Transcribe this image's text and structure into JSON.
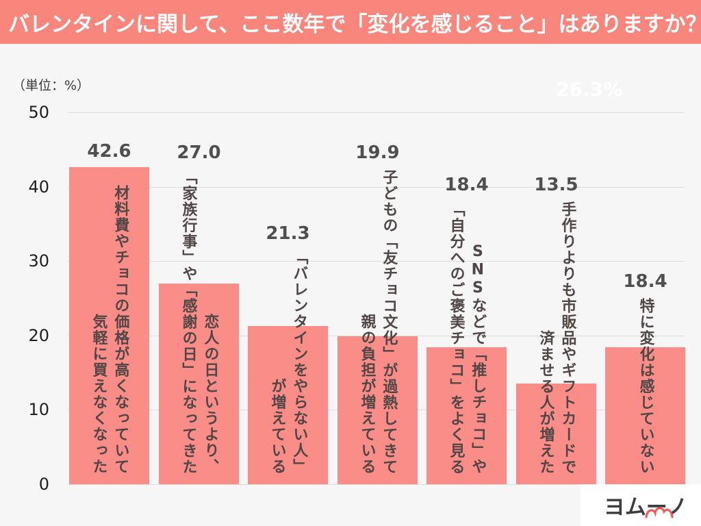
{
  "page": {
    "background": "#f6f6f6"
  },
  "header": {
    "title": "バレンタインに関して、ここ数年で「変化を感じること」はありますか？",
    "background": "#f9867d",
    "text_color": "#ffffff"
  },
  "unit_label": "（単位：%）",
  "watermark_text": "26.3%",
  "logo": {
    "text": "ヨムーノ",
    "text_color": "#3d3d3d",
    "accent_color": "#f0544c"
  },
  "chart_data": {
    "type": "bar",
    "title": "バレンタインに関して、ここ数年で「変化を感じること」はありますか？",
    "unit": "%",
    "ylabel": "（単位：%）",
    "xlabel": "",
    "ylim": [
      0,
      50
    ],
    "yticks": [
      0,
      10,
      20,
      30,
      40,
      50
    ],
    "grid": true,
    "legend": false,
    "bar_color": "#fa8d87",
    "label_color": "#504646",
    "value_color": "#4f4f4f",
    "categories": [
      "材料費やチョコの価格が高くなっていて気軽に買えなくなった",
      "恋人の日というより、「家族行事」や「感謝の日」になってきた",
      "「バレンタインをやらない人」が増えている",
      "子どもの「友チョコ文化」が過熱してきて親の負担が増えている",
      "SNSなどで「推しチョコ」や「自分へのご褒美チョコ」をよく見る",
      "手作りよりも市販品やギフトカードで済ませる人が増えた",
      "特に変化は感じていない"
    ],
    "values": [
      42.6,
      27.0,
      21.3,
      19.9,
      18.4,
      13.5,
      18.4
    ],
    "bars": [
      {
        "value": 42.6,
        "value_label": "42.6",
        "label_lines": [
          "材料費やチョコの価格が高くなっていて",
          "気軽に買えなくなった"
        ]
      },
      {
        "value": 27.0,
        "value_label": "27.0",
        "label_lines": [
          "恋人の日というより、",
          "「家族行事」や「感謝の日」になってきた"
        ]
      },
      {
        "value": 21.3,
        "value_label": "21.3",
        "label_lines": [
          "「バレンタインをやらない人」",
          "が増えている"
        ]
      },
      {
        "value": 19.9,
        "value_label": "19.9",
        "label_lines": [
          "子どもの「友チョコ文化」が過熱してきて",
          "親の負担が増えている"
        ]
      },
      {
        "value": 18.4,
        "value_label": "18.4",
        "label_lines": [
          "SNSなどで「推しチョコ」や",
          "「自分へのご褒美チョコ」をよく見る"
        ]
      },
      {
        "value": 13.5,
        "value_label": "13.5",
        "label_lines": [
          "手作りよりも市販品やギフトカードで",
          "済ませる人が増えた"
        ]
      },
      {
        "value": 18.4,
        "value_label": "18.4",
        "label_lines": [
          "特に変化は感じていない"
        ]
      }
    ]
  }
}
